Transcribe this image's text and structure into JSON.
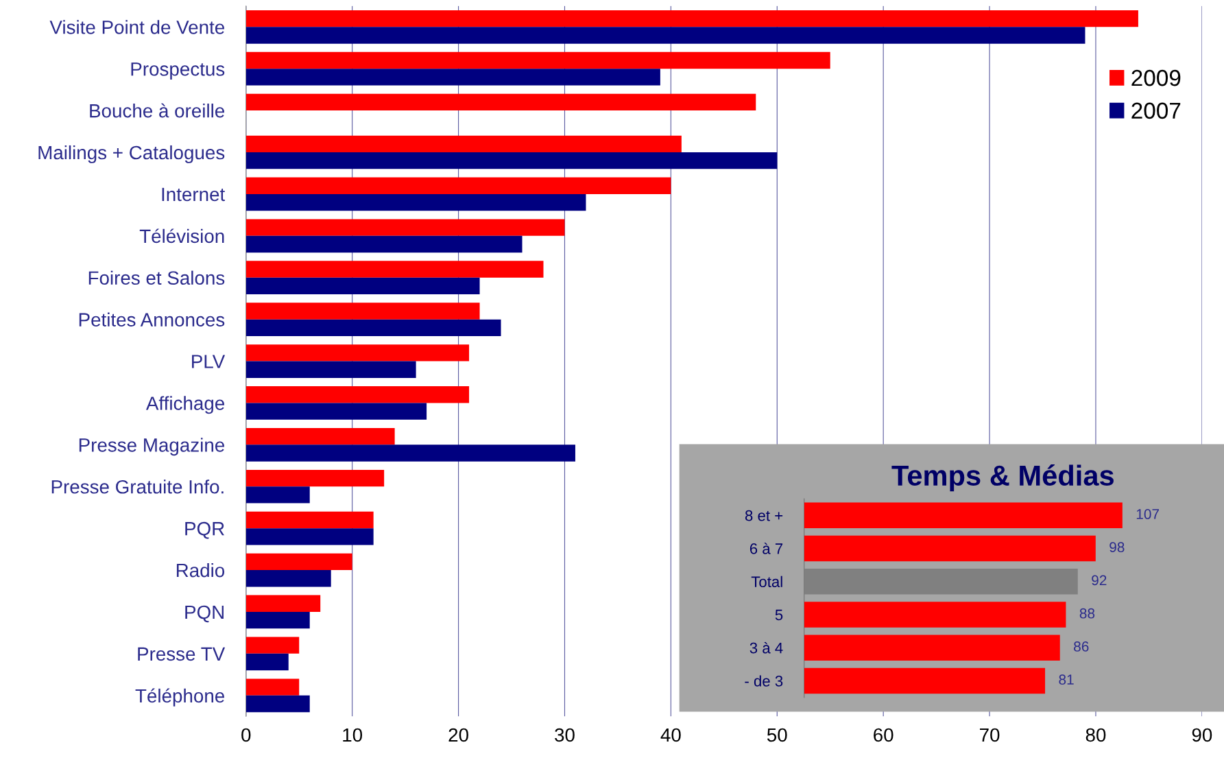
{
  "chart_data": [
    {
      "type": "bar",
      "orientation": "horizontal",
      "categories": [
        "Visite Point de Vente",
        "Prospectus",
        "Bouche à oreille",
        "Mailings + Catalogues",
        "Internet",
        "Télévision",
        "Foires et Salons",
        "Petites Annonces",
        "PLV",
        "Affichage",
        "Presse Magazine",
        "Presse Gratuite Info.",
        "PQR",
        "Radio",
        "PQN",
        "Presse TV",
        "Téléphone"
      ],
      "series": [
        {
          "name": "2009",
          "color": "#ff0000",
          "values": [
            84,
            55,
            48,
            41,
            40,
            30,
            28,
            22,
            21,
            21,
            14,
            13,
            12,
            10,
            7,
            5,
            5
          ]
        },
        {
          "name": "2007",
          "color": "#000080",
          "values": [
            79,
            39,
            null,
            50,
            32,
            26,
            22,
            24,
            16,
            17,
            31,
            6,
            12,
            8,
            6,
            4,
            6
          ]
        }
      ],
      "xlim": [
        0,
        90
      ],
      "xticks": [
        0,
        10,
        20,
        30,
        40,
        50,
        60,
        70,
        80,
        90
      ],
      "grid": "x",
      "legend": "top right"
    },
    {
      "type": "bar",
      "orientation": "horizontal",
      "title": "Temps & Médias",
      "categories": [
        "8 et +",
        "6 à 7",
        "Total",
        "5",
        "3 à 4",
        "- de 3"
      ],
      "values": [
        107,
        98,
        92,
        88,
        86,
        81
      ],
      "colors": [
        "#ff0000",
        "#ff0000",
        "#808080",
        "#ff0000",
        "#ff0000",
        "#ff0000"
      ],
      "data_labels": true,
      "tick_labels": "y"
    }
  ]
}
